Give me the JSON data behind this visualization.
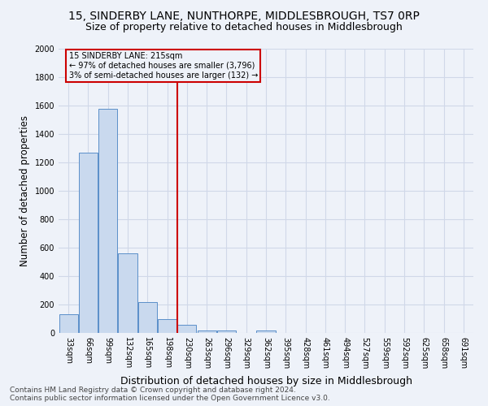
{
  "title": "15, SINDERBY LANE, NUNTHORPE, MIDDLESBROUGH, TS7 0RP",
  "subtitle": "Size of property relative to detached houses in Middlesbrough",
  "xlabel": "Distribution of detached houses by size in Middlesbrough",
  "ylabel": "Number of detached properties",
  "categories": [
    "33sqm",
    "66sqm",
    "99sqm",
    "132sqm",
    "165sqm",
    "198sqm",
    "230sqm",
    "263sqm",
    "296sqm",
    "329sqm",
    "362sqm",
    "395sqm",
    "428sqm",
    "461sqm",
    "494sqm",
    "527sqm",
    "559sqm",
    "592sqm",
    "625sqm",
    "658sqm",
    "691sqm"
  ],
  "values": [
    130,
    1270,
    1580,
    560,
    215,
    100,
    55,
    20,
    15,
    0,
    15,
    0,
    0,
    0,
    0,
    0,
    0,
    0,
    0,
    0,
    0
  ],
  "bar_color": "#c9d9ee",
  "bar_edge_color": "#5b8fc9",
  "property_line_x": 6.0,
  "annotation_text": "15 SINDERBY LANE: 215sqm\n← 97% of detached houses are smaller (3,796)\n3% of semi-detached houses are larger (132) →",
  "annotation_box_color": "#cc0000",
  "ylim": [
    0,
    2000
  ],
  "yticks": [
    0,
    200,
    400,
    600,
    800,
    1000,
    1200,
    1400,
    1600,
    1800,
    2000
  ],
  "footer_line1": "Contains HM Land Registry data © Crown copyright and database right 2024.",
  "footer_line2": "Contains public sector information licensed under the Open Government Licence v3.0.",
  "background_color": "#eef2f9",
  "grid_color": "#d0d8e8",
  "title_fontsize": 10,
  "subtitle_fontsize": 9,
  "tick_fontsize": 7,
  "ylabel_fontsize": 8.5,
  "xlabel_fontsize": 9,
  "footer_fontsize": 6.5
}
